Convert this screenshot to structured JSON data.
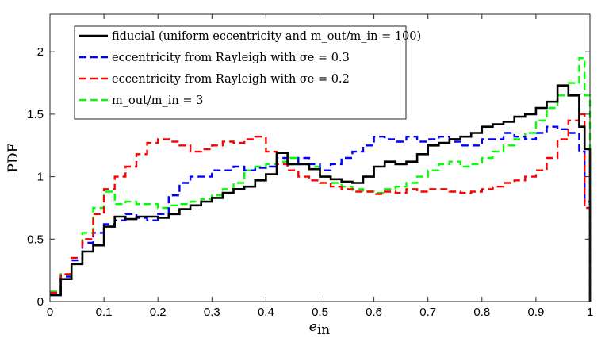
{
  "chart_data": {
    "type": "line",
    "step": true,
    "title": "",
    "xlabel": "e_in",
    "xlabel_main": "e",
    "xlabel_sub": "in",
    "ylabel": "PDF",
    "xlim": [
      0,
      1
    ],
    "ylim": [
      0,
      2.3
    ],
    "xticks": [
      0,
      0.1,
      0.2,
      0.3,
      0.4,
      0.5,
      0.6,
      0.7,
      0.8,
      0.9,
      1
    ],
    "xtick_labels": [
      "0",
      "0.1",
      "0.2",
      "0.3",
      "0.4",
      "0.5",
      "0.6",
      "0.7",
      "0.8",
      "0.9",
      "1"
    ],
    "yticks": [
      0,
      0.5,
      1,
      1.5,
      2
    ],
    "ytick_labels": [
      "0",
      "0.5",
      "1",
      "1.5",
      "2"
    ],
    "legend_position": "top-left",
    "series": [
      {
        "name": "fiducial (uniform eccentricity and m_out/m_in = 100)",
        "legend_label": "fiducial (uniform eccentricity and m_out/m_in = 100)",
        "color": "#000000",
        "style": "solid",
        "x": [
          0,
          0.02,
          0.04,
          0.06,
          0.08,
          0.1,
          0.12,
          0.14,
          0.16,
          0.18,
          0.2,
          0.22,
          0.24,
          0.26,
          0.28,
          0.3,
          0.32,
          0.34,
          0.36,
          0.38,
          0.4,
          0.42,
          0.44,
          0.46,
          0.48,
          0.5,
          0.52,
          0.54,
          0.56,
          0.58,
          0.6,
          0.62,
          0.64,
          0.66,
          0.68,
          0.7,
          0.72,
          0.74,
          0.76,
          0.78,
          0.8,
          0.82,
          0.84,
          0.86,
          0.88,
          0.9,
          0.92,
          0.94,
          0.96,
          0.98,
          0.99,
          1.0
        ],
        "values": [
          0.05,
          0.18,
          0.3,
          0.4,
          0.45,
          0.6,
          0.68,
          0.66,
          0.68,
          0.68,
          0.67,
          0.7,
          0.74,
          0.77,
          0.8,
          0.83,
          0.87,
          0.9,
          0.92,
          0.97,
          1.02,
          1.19,
          1.1,
          1.1,
          1.06,
          1.0,
          0.98,
          0.96,
          0.95,
          1.0,
          1.08,
          1.12,
          1.1,
          1.12,
          1.18,
          1.25,
          1.27,
          1.3,
          1.32,
          1.35,
          1.4,
          1.42,
          1.44,
          1.48,
          1.5,
          1.55,
          1.6,
          1.73,
          1.65,
          1.4,
          1.22,
          0.0
        ]
      },
      {
        "name": "eccentricity from Rayleigh with sigma_e = 0.3",
        "legend_label": "eccentricity from Rayleigh with σe = 0.3",
        "color": "#0000ff",
        "style": "dashed",
        "x": [
          0,
          0.02,
          0.04,
          0.06,
          0.08,
          0.1,
          0.12,
          0.14,
          0.16,
          0.18,
          0.2,
          0.22,
          0.24,
          0.26,
          0.28,
          0.3,
          0.32,
          0.34,
          0.36,
          0.38,
          0.4,
          0.42,
          0.44,
          0.46,
          0.48,
          0.5,
          0.52,
          0.54,
          0.56,
          0.58,
          0.6,
          0.62,
          0.64,
          0.66,
          0.68,
          0.7,
          0.72,
          0.74,
          0.76,
          0.78,
          0.8,
          0.82,
          0.84,
          0.86,
          0.88,
          0.9,
          0.92,
          0.94,
          0.96,
          0.98,
          0.99,
          1.0
        ],
        "values": [
          0.06,
          0.2,
          0.33,
          0.47,
          0.55,
          0.62,
          0.65,
          0.7,
          0.67,
          0.65,
          0.7,
          0.85,
          0.95,
          1.0,
          1.0,
          1.05,
          1.05,
          1.08,
          1.05,
          1.07,
          1.08,
          1.15,
          1.1,
          1.15,
          1.1,
          1.05,
          1.1,
          1.15,
          1.2,
          1.25,
          1.32,
          1.3,
          1.28,
          1.32,
          1.28,
          1.3,
          1.32,
          1.28,
          1.25,
          1.25,
          1.3,
          1.3,
          1.35,
          1.32,
          1.3,
          1.35,
          1.4,
          1.38,
          1.35,
          1.2,
          0.8,
          0.0
        ]
      },
      {
        "name": "eccentricity from Rayleigh with sigma_e = 0.2",
        "legend_label": "eccentricity from Rayleigh with σe = 0.2",
        "color": "#ff0000",
        "style": "dashed",
        "x": [
          0,
          0.02,
          0.04,
          0.06,
          0.08,
          0.1,
          0.12,
          0.14,
          0.16,
          0.18,
          0.2,
          0.22,
          0.24,
          0.26,
          0.28,
          0.3,
          0.32,
          0.34,
          0.36,
          0.38,
          0.4,
          0.42,
          0.44,
          0.46,
          0.48,
          0.5,
          0.52,
          0.54,
          0.56,
          0.58,
          0.6,
          0.62,
          0.64,
          0.66,
          0.68,
          0.7,
          0.72,
          0.74,
          0.76,
          0.78,
          0.8,
          0.82,
          0.84,
          0.86,
          0.88,
          0.9,
          0.92,
          0.94,
          0.96,
          0.98,
          0.99,
          1.0
        ],
        "values": [
          0.07,
          0.22,
          0.35,
          0.5,
          0.7,
          0.9,
          1.0,
          1.08,
          1.18,
          1.27,
          1.3,
          1.28,
          1.25,
          1.2,
          1.22,
          1.25,
          1.28,
          1.27,
          1.3,
          1.32,
          1.2,
          1.1,
          1.05,
          1.0,
          0.97,
          0.95,
          0.92,
          0.9,
          0.88,
          0.88,
          0.86,
          0.88,
          0.87,
          0.9,
          0.88,
          0.9,
          0.9,
          0.88,
          0.87,
          0.88,
          0.9,
          0.92,
          0.95,
          0.97,
          1.0,
          1.05,
          1.15,
          1.3,
          1.45,
          1.5,
          0.75,
          0.0
        ]
      },
      {
        "name": "m_out/m_in = 3",
        "legend_label": "m_out/m_in = 3",
        "color": "#00ff00",
        "style": "dashed",
        "x": [
          0,
          0.02,
          0.04,
          0.06,
          0.08,
          0.1,
          0.12,
          0.14,
          0.16,
          0.18,
          0.2,
          0.22,
          0.24,
          0.26,
          0.28,
          0.3,
          0.32,
          0.34,
          0.36,
          0.38,
          0.4,
          0.42,
          0.44,
          0.46,
          0.48,
          0.5,
          0.52,
          0.54,
          0.56,
          0.58,
          0.6,
          0.62,
          0.64,
          0.66,
          0.68,
          0.7,
          0.72,
          0.74,
          0.76,
          0.78,
          0.8,
          0.82,
          0.84,
          0.86,
          0.88,
          0.9,
          0.92,
          0.94,
          0.96,
          0.98,
          0.99,
          1.0
        ],
        "values": [
          0.08,
          0.22,
          0.3,
          0.55,
          0.75,
          0.88,
          0.78,
          0.8,
          0.78,
          0.78,
          0.75,
          0.77,
          0.78,
          0.8,
          0.82,
          0.85,
          0.9,
          0.95,
          1.05,
          1.08,
          1.1,
          1.12,
          1.15,
          1.1,
          1.08,
          1.0,
          0.95,
          0.92,
          0.9,
          0.88,
          0.87,
          0.9,
          0.92,
          0.95,
          1.0,
          1.05,
          1.1,
          1.12,
          1.08,
          1.1,
          1.15,
          1.2,
          1.25,
          1.3,
          1.35,
          1.45,
          1.55,
          1.65,
          1.75,
          1.95,
          1.65,
          0.0
        ]
      }
    ]
  }
}
